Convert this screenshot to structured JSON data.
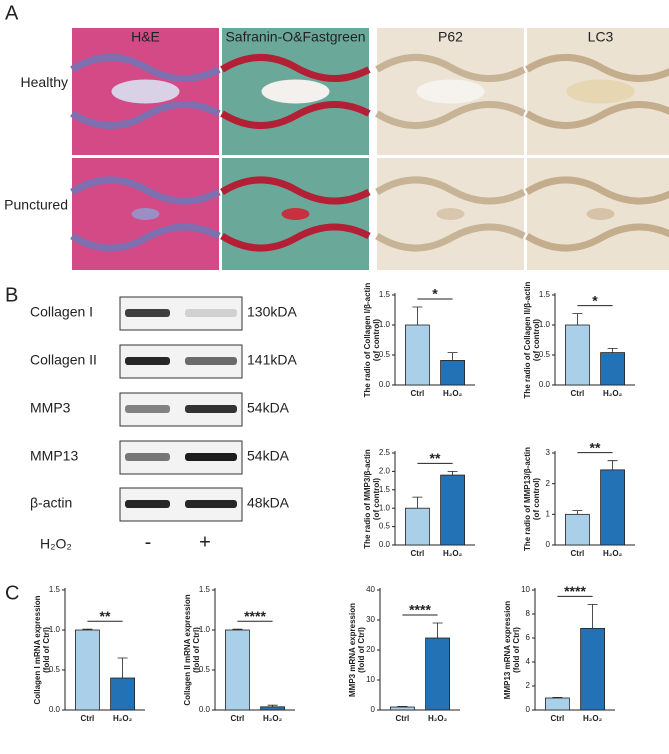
{
  "panel_a": {
    "label": "A",
    "columns": [
      "H&E",
      "Safranin-O&Fastgreen",
      "P62",
      "LC3"
    ],
    "rows": [
      "Healthy",
      "Punctured"
    ]
  },
  "panel_b": {
    "label": "B",
    "blots": [
      {
        "name": "Collagen I",
        "size": "130kDA"
      },
      {
        "name": "Collagen II",
        "size": "141kDA"
      },
      {
        "name": "MMP3",
        "size": "54kDA"
      },
      {
        "name": "MMP13",
        "size": "54kDA"
      },
      {
        "name": "β-actin",
        "size": "48kDA"
      }
    ],
    "treatment": "H₂O₂",
    "minus": "-",
    "plus": "+"
  },
  "panel_c": {
    "label": "C"
  },
  "chart_data": [
    {
      "type": "bar",
      "ylabel": [
        "The radio of Collagen I/β-actin",
        "(of control)"
      ],
      "categories": [
        "Ctrl",
        "H₂O₂"
      ],
      "values": [
        1.0,
        0.41
      ],
      "errors": [
        0.3,
        0.13
      ],
      "colors": [
        "#a9d0e8",
        "#2272b5"
      ],
      "significance": "*",
      "ylim": [
        0,
        1.5
      ],
      "yticks": [
        {
          "value": 0,
          "label": "0.0"
        },
        {
          "value": 0.5,
          "label": "0.5"
        },
        {
          "value": 1,
          "label": "1.0"
        },
        {
          "value": 1.5,
          "label": "1.5"
        }
      ]
    },
    {
      "type": "bar",
      "ylabel": [
        "The radio of Collagen II/β-actin",
        "(of control)"
      ],
      "categories": [
        "Ctrl",
        "H₂O₂"
      ],
      "values": [
        1.0,
        0.54
      ],
      "errors": [
        0.19,
        0.07
      ],
      "colors": [
        "#a9d0e8",
        "#2272b5"
      ],
      "significance": "*",
      "ylim": [
        0,
        1.5
      ],
      "yticks": [
        {
          "value": 0,
          "label": "0.0"
        },
        {
          "value": 0.5,
          "label": "0.5"
        },
        {
          "value": 1,
          "label": "1.0"
        },
        {
          "value": 1.5,
          "label": "1.5"
        }
      ]
    },
    {
      "type": "bar",
      "ylabel": [
        "The radio of MMP3/β-actin",
        "(of control)"
      ],
      "categories": [
        "Ctrl",
        "H₂O₂"
      ],
      "values": [
        1.0,
        1.9
      ],
      "errors": [
        0.3,
        0.1
      ],
      "colors": [
        "#a9d0e8",
        "#2272b5"
      ],
      "significance": "**",
      "ylim": [
        0,
        2.5
      ],
      "yticks": [
        {
          "value": 0,
          "label": "0.0"
        },
        {
          "value": 0.5,
          "label": "0.5"
        },
        {
          "value": 1,
          "label": "1.0"
        },
        {
          "value": 1.5,
          "label": "1.5"
        },
        {
          "value": 2,
          "label": "2.0"
        },
        {
          "value": 2.5,
          "label": "2.5"
        }
      ]
    },
    {
      "type": "bar",
      "ylabel": [
        "The radio of MMP13/β-actin",
        "(of control)"
      ],
      "categories": [
        "Ctrl",
        "H₂O₂"
      ],
      "values": [
        1.0,
        2.45
      ],
      "errors": [
        0.12,
        0.3
      ],
      "colors": [
        "#a9d0e8",
        "#2272b5"
      ],
      "significance": "**",
      "ylim": [
        0,
        3
      ],
      "yticks": [
        0,
        1,
        2,
        3
      ]
    },
    {
      "type": "bar",
      "ylabel": [
        "Collagen I mRNA expression",
        "(fold of Ctrl)"
      ],
      "categories": [
        "Ctrl",
        "H₂O₂"
      ],
      "values": [
        1.0,
        0.4
      ],
      "errors": [
        0.01,
        0.25
      ],
      "colors": [
        "#a9d0e8",
        "#2272b5"
      ],
      "significance": "**",
      "ylim": [
        0,
        1.5
      ],
      "yticks": [
        {
          "value": 0,
          "label": "0.0"
        },
        {
          "value": 0.5,
          "label": "0.5"
        },
        {
          "value": 1,
          "label": "1.0"
        },
        {
          "value": 1.5,
          "label": "1.5"
        }
      ]
    },
    {
      "type": "bar",
      "ylabel": [
        "Collagen II mRNA expression",
        "(fold of Ctrl)"
      ],
      "categories": [
        "Ctrl",
        "H₂O₂"
      ],
      "values": [
        1.0,
        0.04
      ],
      "errors": [
        0.01,
        0.02
      ],
      "colors": [
        "#a9d0e8",
        "#2272b5"
      ],
      "significance": "****",
      "ylim": [
        0,
        1.5
      ],
      "yticks": [
        {
          "value": 0,
          "label": "0.0"
        },
        {
          "value": 0.5,
          "label": "0.5"
        },
        {
          "value": 1,
          "label": "1.0"
        },
        {
          "value": 1.5,
          "label": "1.5"
        }
      ]
    },
    {
      "type": "bar",
      "ylabel": [
        "MMP3 mRNA expression",
        "(fold of Ctrl)"
      ],
      "categories": [
        "Ctrl",
        "H₂O₂"
      ],
      "values": [
        1,
        24
      ],
      "errors": [
        0.2,
        5
      ],
      "colors": [
        "#a9d0e8",
        "#2272b5"
      ],
      "significance": "****",
      "ylim": [
        0,
        40
      ],
      "yticks": [
        0,
        10,
        20,
        30,
        40
      ]
    },
    {
      "type": "bar",
      "ylabel": [
        "MMP13 mRNA expression",
        "(fold of Ctrl)"
      ],
      "categories": [
        "Ctrl",
        "H₂O₂"
      ],
      "values": [
        1,
        6.8
      ],
      "errors": [
        0.05,
        2
      ],
      "colors": [
        "#a9d0e8",
        "#2272b5"
      ],
      "significance": "****",
      "ylim": [
        0,
        10
      ],
      "yticks": [
        0,
        2,
        4,
        6,
        8,
        10
      ]
    }
  ]
}
